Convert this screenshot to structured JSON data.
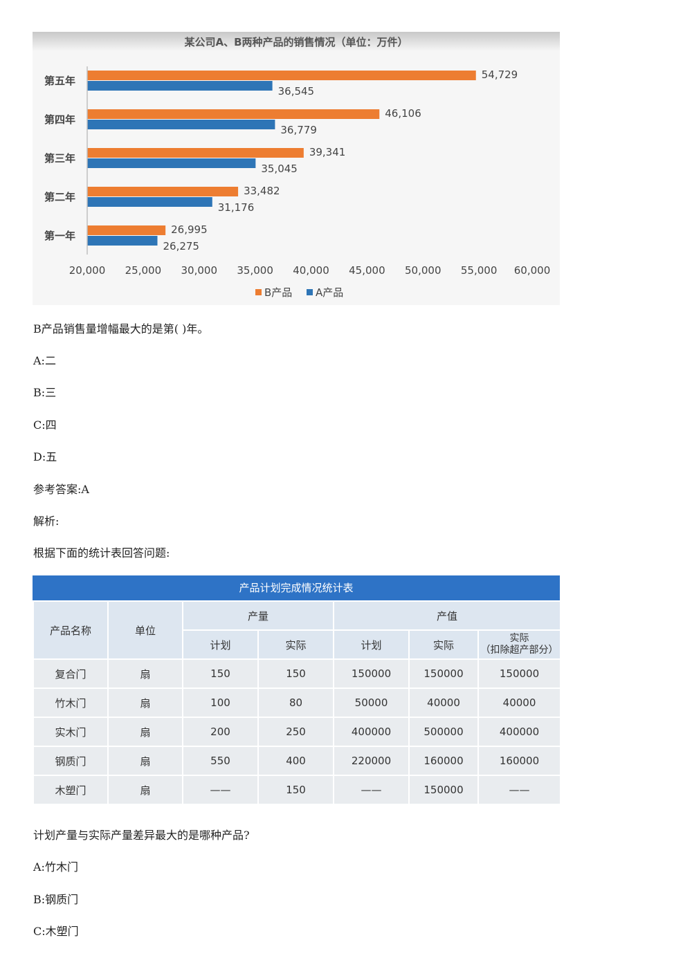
{
  "chart_data": {
    "type": "bar",
    "orientation": "horizontal",
    "title": "某公司A、B两种产品的销售情况（单位：万件）",
    "categories": [
      "第一年",
      "第二年",
      "第三年",
      "第四年",
      "第五年"
    ],
    "series": [
      {
        "name": "B产品",
        "color": "#ed7d31",
        "values": [
          26995,
          33482,
          39341,
          46106,
          54729
        ],
        "labels": [
          "26,995",
          "33,482",
          "39,341",
          "46,106",
          "54,729"
        ]
      },
      {
        "name": "A产品",
        "color": "#2e75b6",
        "values": [
          26275,
          31176,
          35045,
          36779,
          36545
        ],
        "labels": [
          "26,275",
          "31,176",
          "35,045",
          "36,779",
          "36,545"
        ]
      }
    ],
    "xlim": [
      20000,
      60000
    ],
    "xticks": [
      "20,000",
      "25,000",
      "30,000",
      "35,000",
      "40,000",
      "45,000",
      "50,000",
      "55,000",
      "60,000"
    ],
    "legend": "bottom",
    "grid": false
  },
  "question1": {
    "stem": "B产品销售量增幅最大的是第( )年。",
    "options": [
      "A:二",
      "B:三",
      "C:四",
      "D:五"
    ],
    "answer": "参考答案:A",
    "analysis": "解析:"
  },
  "intro2": "根据下面的统计表回答问题:",
  "table": {
    "title": "产品计划完成情况统计表",
    "headers": {
      "name": "产品名称",
      "unit": "单位",
      "output": "产量",
      "value": "产值",
      "plan": "计划",
      "actual": "实际",
      "value_plan": "计划",
      "value_actual": "实际",
      "value_actual_ex": "实际",
      "value_actual_ex_note": "（扣除超产部分）"
    },
    "rows": [
      [
        "复合门",
        "扇",
        "150",
        "150",
        "150000",
        "150000",
        "150000"
      ],
      [
        "竹木门",
        "扇",
        "100",
        "80",
        "50000",
        "40000",
        "40000"
      ],
      [
        "实木门",
        "扇",
        "200",
        "250",
        "400000",
        "500000",
        "400000"
      ],
      [
        "钢质门",
        "扇",
        "550",
        "400",
        "220000",
        "160000",
        "160000"
      ],
      [
        "木塑门",
        "扇",
        "——",
        "150",
        "——",
        "150000",
        "——"
      ]
    ]
  },
  "question2": {
    "stem": "计划产量与实际产量差异最大的是哪种产品?",
    "options": [
      "A:竹木门",
      "B:钢质门",
      "C:木塑门"
    ]
  }
}
